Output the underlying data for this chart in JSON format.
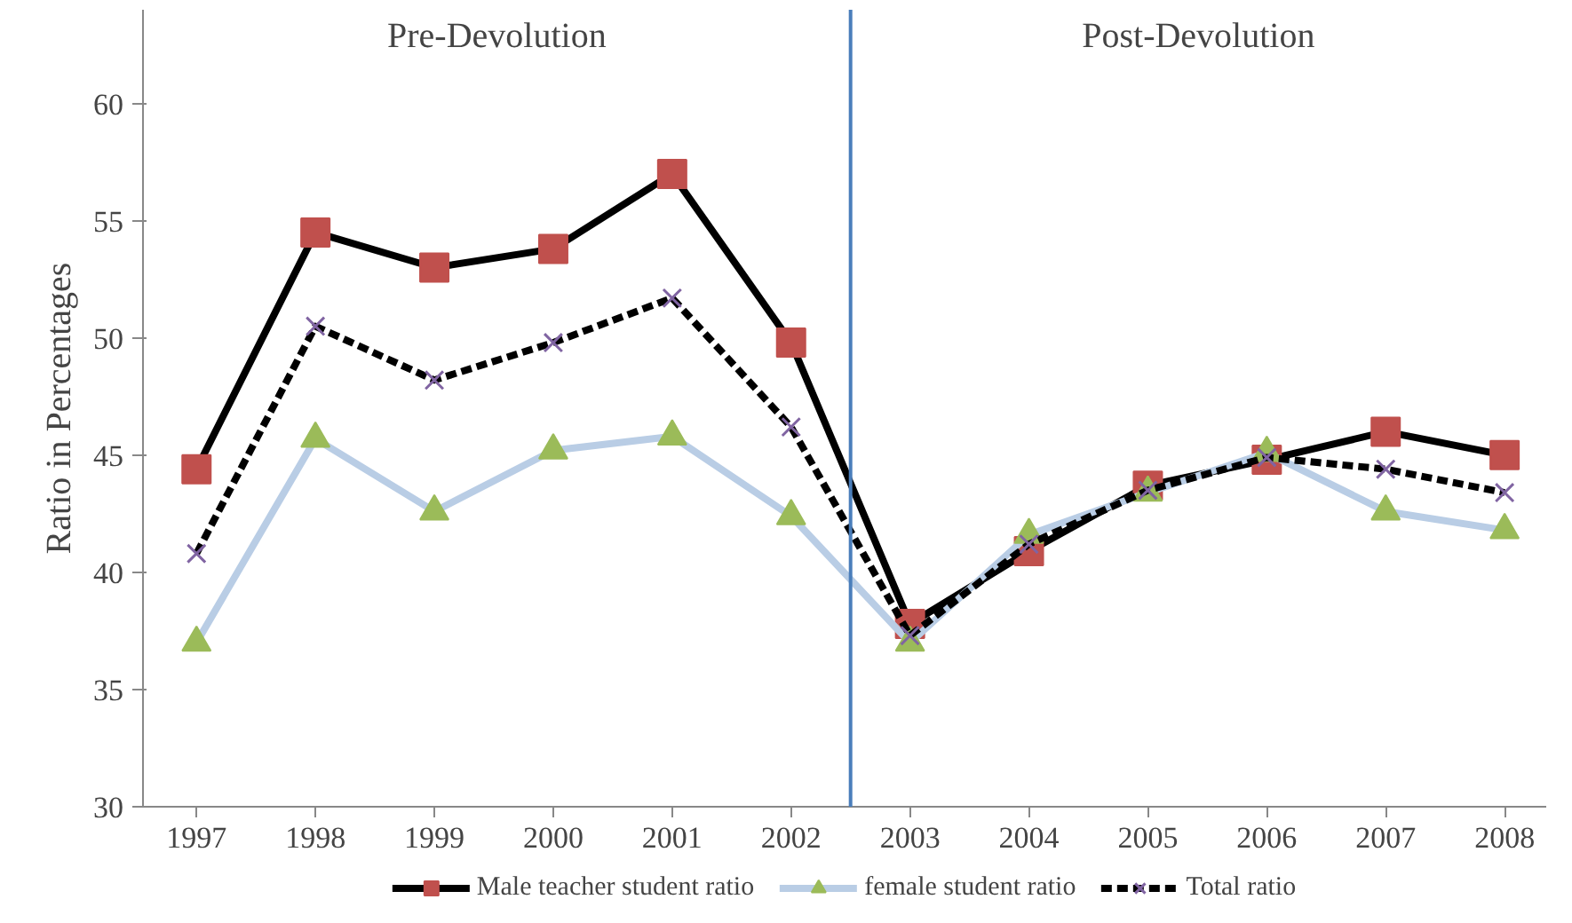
{
  "chart_data": {
    "type": "line",
    "ylabel": "Ratio in Percentages",
    "x": [
      1997,
      1998,
      1999,
      2000,
      2001,
      2002,
      2003,
      2004,
      2005,
      2006,
      2007,
      2008
    ],
    "xlim": [
      1996.55,
      2008.35
    ],
    "xticks": [
      1997,
      1998,
      1999,
      2000,
      2001,
      2002,
      2003,
      2004,
      2005,
      2006,
      2007,
      2008
    ],
    "ylim": [
      30,
      64
    ],
    "yticks": [
      30,
      35,
      40,
      45,
      50,
      55,
      60
    ],
    "grid": false,
    "legend": "bottom",
    "annotations": [
      "Pre-Devolution",
      "Post-Devolution"
    ],
    "ref_lines": [
      {
        "axis": "x",
        "value": 2002.5,
        "color": "#4a7ebb"
      }
    ],
    "series": [
      {
        "name": "Male teacher student ratio",
        "color": "#000000",
        "colors": [
          "#c0504d",
          "#c0504d",
          "#c0504d",
          "#c0504d",
          "#c0504d",
          "#c0504d",
          "#c0504d",
          "#c0504d",
          "#c0504d",
          "#c0504d",
          "#c0504d",
          "#c0504d"
        ],
        "marker": "square",
        "line_style": "solid",
        "values": [
          44.4,
          54.5,
          53.0,
          53.8,
          57.0,
          49.8,
          37.8,
          40.9,
          43.7,
          44.8,
          46.0,
          45.0
        ]
      },
      {
        "name": "female student ratio",
        "color": "#b9cde5",
        "colors": [
          "#9bbb59",
          "#9bbb59",
          "#9bbb59",
          "#9bbb59",
          "#9bbb59",
          "#9bbb59",
          "#9bbb59",
          "#9bbb59",
          "#9bbb59",
          "#9bbb59",
          "#9bbb59",
          "#9bbb59"
        ],
        "marker": "triangle",
        "line_style": "solid",
        "values": [
          37.0,
          45.7,
          42.6,
          45.2,
          45.8,
          42.4,
          37.0,
          41.6,
          43.4,
          45.1,
          42.6,
          41.8
        ]
      },
      {
        "name": "Total ratio",
        "color": "#000000",
        "colors": [
          "#8064a2",
          "#8064a2",
          "#8064a2",
          "#8064a2",
          "#8064a2",
          "#8064a2",
          "#8064a2",
          "#8064a2",
          "#8064a2",
          "#8064a2",
          "#8064a2",
          "#8064a2"
        ],
        "marker": "cross",
        "line_style": "dashed",
        "values": [
          40.8,
          50.5,
          48.2,
          49.8,
          51.7,
          46.2,
          37.3,
          41.2,
          43.5,
          44.9,
          44.4,
          43.4
        ]
      }
    ]
  }
}
